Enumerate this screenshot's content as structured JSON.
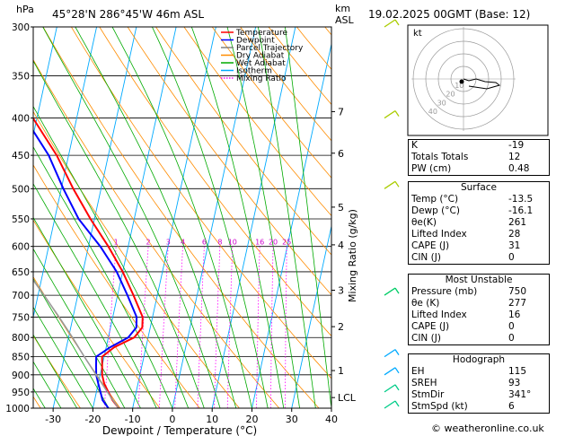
{
  "header": {
    "hpa_label": "hPa",
    "location": "45°28'N  286°45'W  46m  ASL",
    "km_label": "km",
    "asl_label": "ASL",
    "datetime": "19.02.2025  00GMT  (Base: 12)"
  },
  "legend": [
    {
      "label": "Temperature",
      "color": "#ff0000",
      "style": "solid"
    },
    {
      "label": "Dewpoint",
      "color": "#0000ff",
      "style": "solid"
    },
    {
      "label": "Parcel Trajectory",
      "color": "#808080",
      "style": "solid"
    },
    {
      "label": "Dry Adiabat",
      "color": "#ff8c00",
      "style": "solid"
    },
    {
      "label": "Wet Adiabat",
      "color": "#00aa00",
      "style": "solid"
    },
    {
      "label": "Isotherm",
      "color": "#00aaff",
      "style": "solid"
    },
    {
      "label": "Mixing Ratio",
      "color": "#ff00ff",
      "style": "dotted"
    }
  ],
  "chart_data": {
    "type": "line",
    "xlabel": "Dewpoint / Temperature (°C)",
    "ylabel": "hPa",
    "right_label": "Mixing Ratio (g/kg)",
    "pressure_ticks": [
      300,
      350,
      400,
      450,
      500,
      550,
      600,
      650,
      700,
      750,
      800,
      850,
      900,
      950,
      1000
    ],
    "x_ticks": [
      -30,
      -20,
      -10,
      0,
      10,
      20,
      30,
      40
    ],
    "xlim": [
      -35,
      40
    ],
    "ylim": [
      1000,
      300
    ],
    "skew_per_log_p": 77,
    "km_ticks": [
      {
        "label": "7",
        "p": 392
      },
      {
        "label": "6",
        "p": 447
      },
      {
        "label": "5",
        "p": 530
      },
      {
        "label": "4",
        "p": 597
      },
      {
        "label": "3",
        "p": 689
      },
      {
        "label": "2",
        "p": 773
      },
      {
        "label": "1",
        "p": 888
      },
      {
        "label": "LCL",
        "p": 967
      }
    ],
    "mixing_ratio_labels": [
      "1",
      "2",
      "3",
      "4",
      "6",
      "8",
      "10",
      "16",
      "20",
      "25"
    ],
    "mixing_ratio_values": [
      1,
      2,
      3,
      4,
      6,
      8,
      10,
      16,
      20,
      25
    ],
    "series": [
      {
        "name": "Temperature",
        "color": "#ff0000",
        "p": [
          1000,
          975,
          950,
          925,
          900,
          875,
          850,
          825,
          800,
          775,
          750,
          700,
          650,
          600,
          550,
          500,
          450,
          400,
          350,
          300
        ],
        "t": [
          -13.5,
          -15.5,
          -17,
          -18.5,
          -19.5,
          -20,
          -20.5,
          -18,
          -13.5,
          -12,
          -12.5,
          -16,
          -20,
          -25,
          -31,
          -37,
          -43,
          -51,
          -60,
          -70
        ]
      },
      {
        "name": "Dewpoint",
        "color": "#0000ff",
        "p": [
          1000,
          975,
          950,
          925,
          900,
          875,
          850,
          825,
          800,
          775,
          750,
          700,
          650,
          600,
          550,
          500,
          450,
          400,
          350,
          300
        ],
        "t": [
          -16.1,
          -18,
          -19,
          -20,
          -21,
          -21.5,
          -22,
          -19,
          -15,
          -13.5,
          -14,
          -17.5,
          -21.5,
          -27,
          -34,
          -39.5,
          -45,
          -53,
          -62,
          -72
        ]
      },
      {
        "name": "Parcel Trajectory",
        "color": "#999999",
        "p": [
          1000,
          967,
          900,
          850,
          800,
          750,
          700,
          650,
          600,
          550,
          500,
          450
        ],
        "t": [
          -13.5,
          -16,
          -21,
          -25,
          -29,
          -33.5,
          -38.5,
          -44,
          -50,
          -56.5,
          -63.5,
          -71
        ]
      }
    ],
    "wind_barbs": [
      {
        "p": 300,
        "color": "#aacc00"
      },
      {
        "p": 400,
        "color": "#aacc00"
      },
      {
        "p": 500,
        "color": "#aacc00"
      },
      {
        "p": 700,
        "color": "#00cc66"
      },
      {
        "p": 850,
        "color": "#00aaff"
      },
      {
        "p": 900,
        "color": "#00aaff"
      },
      {
        "p": 950,
        "color": "#00cc88"
      },
      {
        "p": 1000,
        "color": "#00cc88"
      }
    ]
  },
  "hodograph": {
    "unit_label": "kt",
    "ring_labels": [
      "10",
      "20",
      "30",
      "40"
    ]
  },
  "indices": {
    "rows": [
      {
        "label": "K",
        "value": "-19"
      },
      {
        "label": "Totals Totals",
        "value": "12"
      },
      {
        "label": "PW (cm)",
        "value": "0.48"
      }
    ]
  },
  "surface": {
    "title": "Surface",
    "rows": [
      {
        "label": "Temp (°C)",
        "value": "-13.5"
      },
      {
        "label": "Dewp (°C)",
        "value": "-16.1"
      },
      {
        "label": "θe(K)",
        "value": "261"
      },
      {
        "label": "Lifted Index",
        "value": "28"
      },
      {
        "label": "CAPE (J)",
        "value": "31"
      },
      {
        "label": "CIN (J)",
        "value": "0"
      }
    ]
  },
  "most_unstable": {
    "title": "Most Unstable",
    "rows": [
      {
        "label": "Pressure (mb)",
        "value": "750"
      },
      {
        "label": "θe (K)",
        "value": "277"
      },
      {
        "label": "Lifted Index",
        "value": "16"
      },
      {
        "label": "CAPE (J)",
        "value": "0"
      },
      {
        "label": "CIN (J)",
        "value": "0"
      }
    ]
  },
  "hodograph_table": {
    "title": "Hodograph",
    "rows": [
      {
        "label": "EH",
        "value": "115"
      },
      {
        "label": "SREH",
        "value": "93"
      },
      {
        "label": "StmDir",
        "value": "341°"
      },
      {
        "label": "StmSpd (kt)",
        "value": "6"
      }
    ]
  },
  "footer": "© weatheronline.co.uk"
}
